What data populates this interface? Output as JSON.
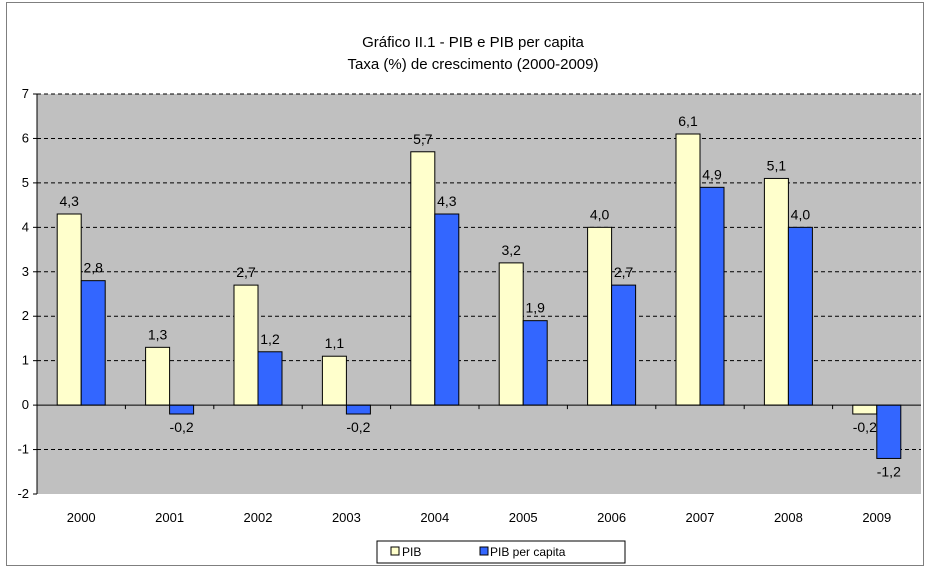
{
  "chart_data": {
    "type": "bar",
    "title": "Gráfico II.1 - PIB e PIB per capita",
    "subtitle": "Taxa (%) de crescimento  (2000-2009)",
    "xlabel": "",
    "ylabel": "",
    "categories": [
      "2000",
      "2001",
      "2002",
      "2003",
      "2004",
      "2005",
      "2006",
      "2007",
      "2008",
      "2009"
    ],
    "series": [
      {
        "name": "PIB",
        "values": [
          4.3,
          1.3,
          2.7,
          1.1,
          5.7,
          3.2,
          4.0,
          6.1,
          5.1,
          -0.2
        ],
        "labels": [
          "4,3",
          "1,3",
          "2,7",
          "1,1",
          "5,7",
          "3,2",
          "4,0",
          "6,1",
          "5,1",
          "-0,2"
        ],
        "color": "#ffffcc"
      },
      {
        "name": "PIB per capita",
        "values": [
          2.8,
          -0.2,
          1.2,
          -0.2,
          4.3,
          1.9,
          2.7,
          4.9,
          4.0,
          -1.2
        ],
        "labels": [
          "2,8",
          "-0,2",
          "1,2",
          "-0,2",
          "4,3",
          "1,9",
          "2,7",
          "4,9",
          "4,0",
          "-1,2"
        ],
        "color": "#3366ff"
      }
    ],
    "ylim": [
      -2,
      7
    ],
    "yticks": [
      "-2",
      "-1",
      "0",
      "1",
      "2",
      "3",
      "4",
      "5",
      "6",
      "7"
    ],
    "grid": true,
    "plot_background": "#c0c0c0",
    "legend_position": "bottom"
  }
}
